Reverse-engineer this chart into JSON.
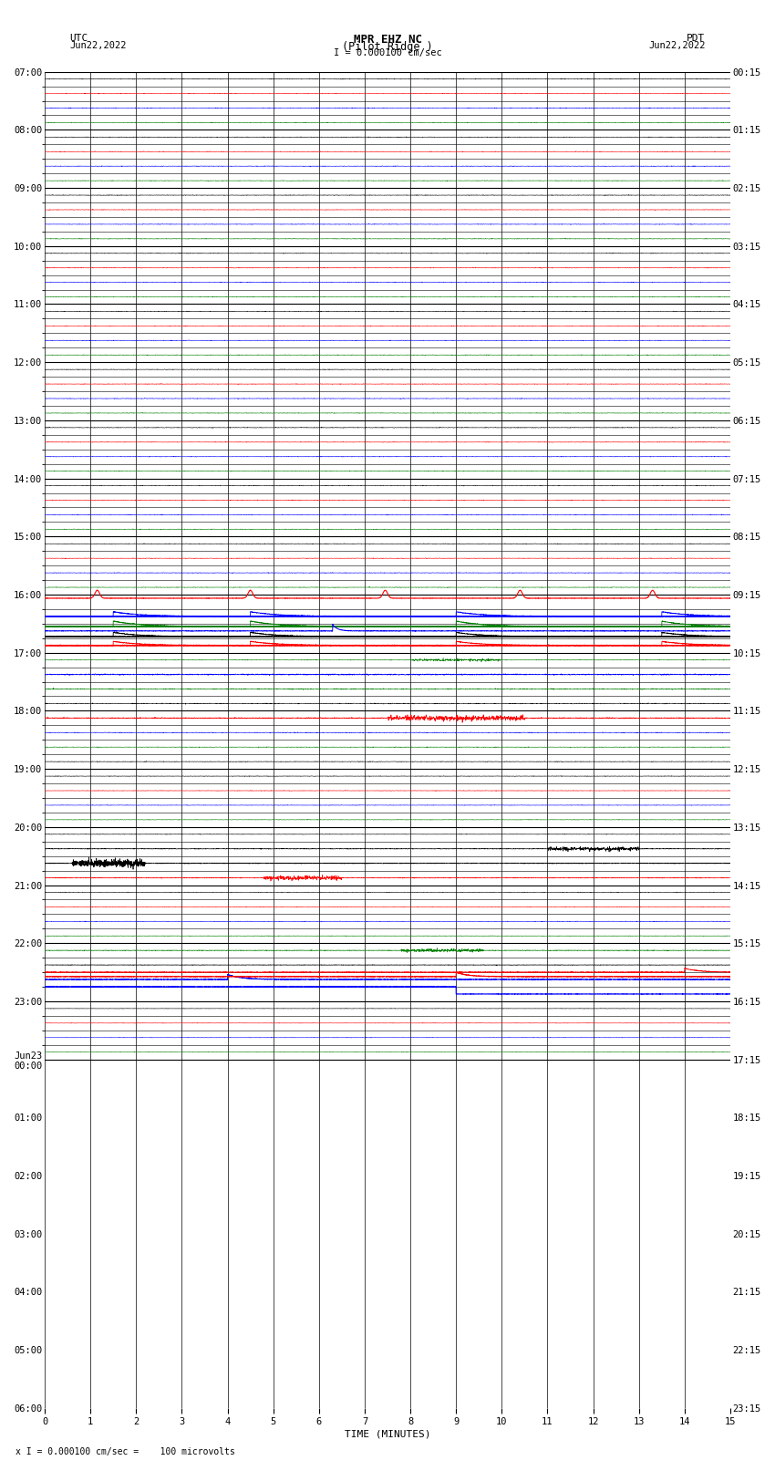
{
  "title_line1": "MPR EHZ NC",
  "title_line2": "(Pilot Ridge )",
  "title_scale": "I = 0.000100 cm/sec",
  "footer_label": "x I = 0.000100 cm/sec =    100 microvolts",
  "xlabel": "TIME (MINUTES)",
  "left_times": [
    "07:00",
    "08:00",
    "09:00",
    "10:00",
    "11:00",
    "12:00",
    "13:00",
    "14:00",
    "15:00",
    "16:00",
    "17:00",
    "18:00",
    "19:00",
    "20:00",
    "21:00",
    "22:00",
    "23:00",
    "Jun23\n00:00",
    "01:00",
    "02:00",
    "03:00",
    "04:00",
    "05:00",
    "06:00"
  ],
  "right_times": [
    "00:15",
    "01:15",
    "02:15",
    "03:15",
    "04:15",
    "05:15",
    "06:15",
    "07:15",
    "08:15",
    "09:15",
    "10:15",
    "11:15",
    "12:15",
    "13:15",
    "14:15",
    "15:15",
    "16:15",
    "17:15",
    "18:15",
    "19:15",
    "20:15",
    "21:15",
    "22:15",
    "23:15"
  ],
  "num_rows": 68,
  "rows_per_hour": 4,
  "x_min": 0,
  "x_max": 15,
  "background_color": "#ffffff",
  "colors": {
    "red": "#ff0000",
    "blue": "#0000ff",
    "green": "#008000",
    "black": "#000000"
  }
}
